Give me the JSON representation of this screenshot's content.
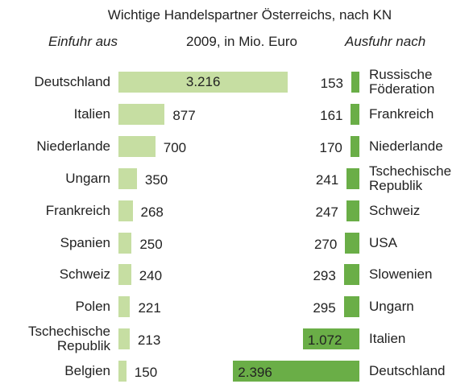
{
  "chart_data": [
    {
      "type": "hbar",
      "title": "Wichtige Handelspartner Österreichs, nach KN",
      "subtitle": "2009, in Mio. Euro",
      "heading": "Einfuhr aus",
      "color": "#c6dea2",
      "categories": [
        "Deutschland",
        "Italien",
        "Niederlande",
        "Ungarn",
        "Frankreich",
        "Spanien",
        "Schweiz",
        "Polen",
        "Tschechische Republik",
        "Belgien"
      ],
      "values": [
        3216,
        877,
        700,
        350,
        268,
        250,
        240,
        221,
        213,
        150
      ],
      "value_labels": [
        "3.216",
        "877",
        "700",
        "350",
        "268",
        "250",
        "240",
        "221",
        "213",
        "150"
      ]
    },
    {
      "type": "hbar",
      "heading": "Ausfuhr nach",
      "color": "#6aae47",
      "categories": [
        "Russische Föderation",
        "Frankreich",
        "Niederlande",
        "Tschechische Republik",
        "Schweiz",
        "USA",
        "Slowenien",
        "Ungarn",
        "Italien",
        "Deutschland"
      ],
      "values": [
        153,
        161,
        170,
        241,
        247,
        270,
        293,
        295,
        1072,
        2396
      ],
      "value_labels": [
        "153",
        "161",
        "170",
        "241",
        "247",
        "270",
        "293",
        "295",
        "1.072",
        "2.396"
      ]
    }
  ]
}
